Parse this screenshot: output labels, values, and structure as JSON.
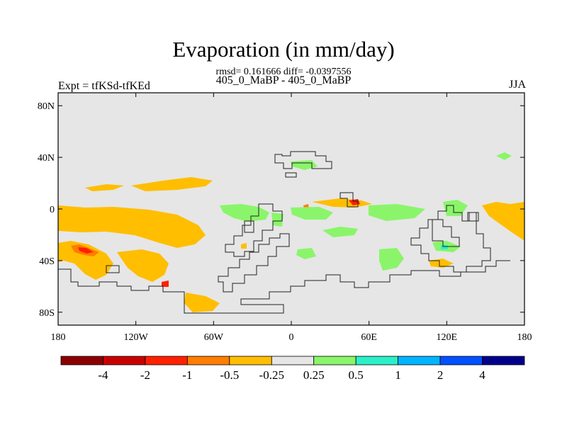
{
  "header": {
    "title": "Evaporation (in mm/day)",
    "stats": "rmsd= 0.161666 diff= -0.0397556",
    "subtitle": "405_0_MaBP - 405_0_MaBP",
    "expt": "Expt = tfKSd-tfKEd",
    "season": "JJA"
  },
  "map": {
    "lat_ticks": [
      {
        "label": "80N",
        "lat": 80
      },
      {
        "label": "40N",
        "lat": 40
      },
      {
        "label": "0",
        "lat": 0
      },
      {
        "label": "40S",
        "lat": -40
      },
      {
        "label": "80S",
        "lat": -80
      }
    ],
    "lon_ticks": [
      {
        "label": "180",
        "lon": -180
      },
      {
        "label": "120W",
        "lon": -120
      },
      {
        "label": "60W",
        "lon": -60
      },
      {
        "label": "0",
        "lon": 0
      },
      {
        "label": "60E",
        "lon": 60
      },
      {
        "label": "120E",
        "lon": 120
      },
      {
        "label": "180",
        "lon": 180
      }
    ],
    "background_color": "#e6e6e6"
  },
  "colorbar": {
    "colors": [
      "#8b0000",
      "#c80000",
      "#ff2000",
      "#ff7d00",
      "#ffbe00",
      "#e6e6e6",
      "#8af56a",
      "#2af0c8",
      "#00b4ff",
      "#0050ff",
      "#00008b"
    ],
    "labels": [
      "-4",
      "-2",
      "-1",
      "-0.5",
      "-0.25",
      "0.25",
      "0.5",
      "1",
      "2",
      "4"
    ]
  }
}
